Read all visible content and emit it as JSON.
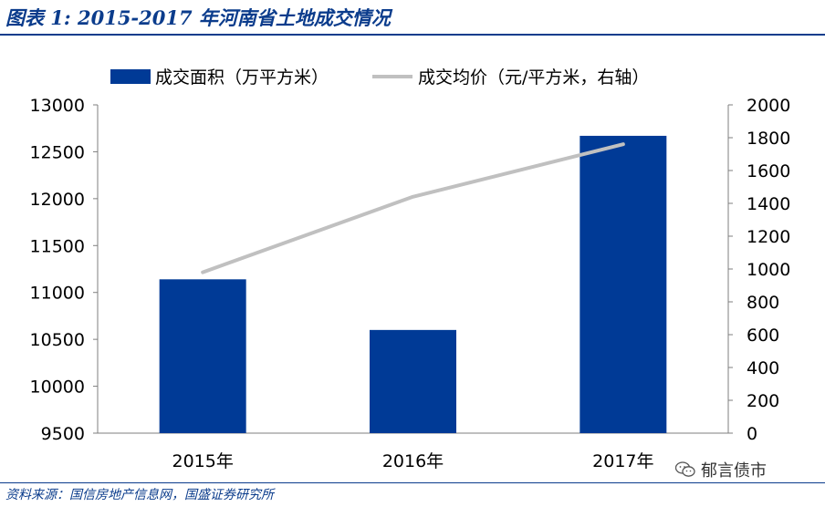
{
  "header": {
    "title": "图表 1:  2015-2017 年河南省土地成交情况"
  },
  "chart_data": {
    "type": "bar",
    "categories": [
      "2015年",
      "2016年",
      "2017年"
    ],
    "series": [
      {
        "name": "成交面积（万平方米）",
        "type": "bar",
        "axis": "left",
        "values": [
          11140,
          10600,
          12670
        ],
        "color": "#003a96"
      },
      {
        "name": "成交均价（元/平方米，右轴）",
        "type": "line",
        "axis": "right",
        "values": [
          980,
          1440,
          1760
        ],
        "color": "#c0c0c0"
      }
    ],
    "ylim": [
      9500,
      13000
    ],
    "yticks": [
      9500,
      10000,
      10500,
      11000,
      11500,
      12000,
      12500,
      13000
    ],
    "y2lim": [
      0,
      2000
    ],
    "y2ticks": [
      0,
      200,
      400,
      600,
      800,
      1000,
      1200,
      1400,
      1600,
      1800,
      2000
    ],
    "legend_position": "top",
    "grid": false
  },
  "footer": {
    "source": "资料来源：国信房地产信息网，国盛证券研究所",
    "watermark": "郁言债市"
  }
}
